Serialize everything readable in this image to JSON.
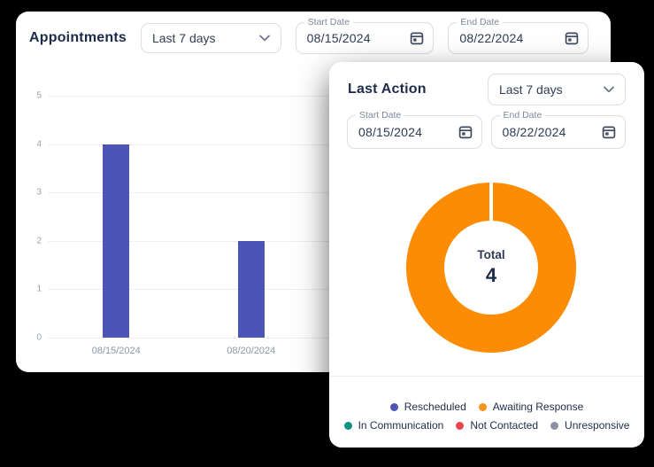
{
  "background_color": "#000000",
  "appointments_card": {
    "title": "Appointments",
    "range_dropdown": {
      "value": "Last 7 days"
    },
    "start_date_field": {
      "label": "Start Date",
      "value": "08/15/2024"
    },
    "end_date_field": {
      "label": "End Date",
      "value": "08/22/2024"
    },
    "chart_data": {
      "type": "bar",
      "categories": [
        "08/15/2024",
        "08/20/2024"
      ],
      "values": [
        4,
        2
      ],
      "title": "Appointments",
      "xlabel": "",
      "ylabel": "",
      "ylim": [
        0,
        5
      ],
      "y_tick_step": 1,
      "bar_color": "#4C55B6",
      "grid": "horizontal-dotted",
      "legend_position": "none"
    }
  },
  "last_action_card": {
    "title": "Last Action",
    "range_dropdown": {
      "value": "Last 7 days"
    },
    "start_date_field": {
      "label": "Start Date",
      "value": "08/15/2024"
    },
    "end_date_field": {
      "label": "End Date",
      "value": "08/22/2024"
    },
    "chart_data": {
      "type": "pie",
      "donut": true,
      "center_label": "Total",
      "center_value": "4",
      "segments": [
        {
          "label": "Awaiting Response",
          "value": 4,
          "color": "#FB8C04"
        }
      ],
      "legend_position": "bottom"
    },
    "legend": [
      {
        "label": "Rescheduled",
        "color": "#4C55B6"
      },
      {
        "label": "Awaiting Response",
        "color": "#F7941E"
      },
      {
        "label": "In Communication",
        "color": "#0E9384"
      },
      {
        "label": "Not Contacted",
        "color": "#E8484C"
      },
      {
        "label": "Unresponsive",
        "color": "#8B92A5"
      }
    ]
  }
}
